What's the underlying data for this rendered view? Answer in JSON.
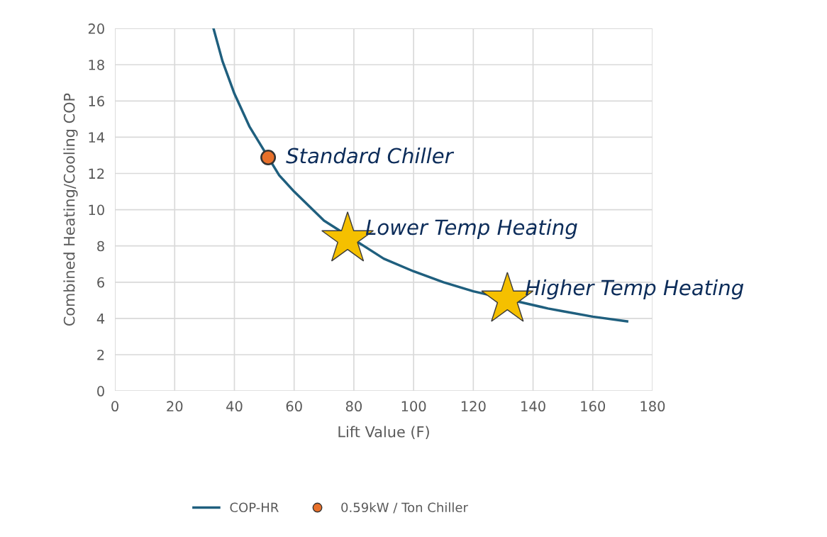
{
  "chart_data": {
    "type": "line",
    "xlabel": "Lift Value (F)",
    "ylabel": "Combined Heating/Cooling COP",
    "xlim": [
      0,
      180
    ],
    "xticks": [
      0,
      20,
      40,
      60,
      80,
      100,
      120,
      140,
      160,
      180
    ],
    "ylim": [
      0,
      20
    ],
    "yticks": [
      0,
      2,
      4,
      6,
      8,
      10,
      12,
      14,
      16,
      18,
      20
    ],
    "grid": true,
    "legend": "bottom",
    "series": [
      {
        "name": "COP-HR",
        "color": "#1f5f7e",
        "marker": "none",
        "line_style": "solid",
        "x": [
          33,
          36,
          40,
          45,
          55,
          60,
          70,
          90,
          100,
          110,
          120,
          145,
          150,
          160,
          171.5
        ],
        "values": [
          20,
          18.2,
          16.4,
          14.6,
          11.9,
          11,
          9.4,
          7.3,
          6.6,
          6.0,
          5.5,
          4.55,
          4.4,
          4.1,
          3.84
        ]
      },
      {
        "name": "0.59kW / Ton Chiller",
        "type": "scatter",
        "color": "#e8702a",
        "marker": "circle",
        "x": [
          51.3
        ],
        "values": [
          12.88
        ]
      },
      {
        "type": "scatter",
        "color": "#f5c000",
        "marker": "star",
        "x": [
          77.9,
          131.4
        ],
        "values": [
          8.38,
          5.05
        ]
      }
    ],
    "annotations": [
      {
        "text": "Standard Chiller",
        "x": 51.3,
        "y": 12.88
      },
      {
        "text": "Lower Temp Heating",
        "x": 77.9,
        "y": 8.38
      },
      {
        "text": "Higher Temp Heating",
        "x": 131.4,
        "y": 5.05
      }
    ]
  }
}
